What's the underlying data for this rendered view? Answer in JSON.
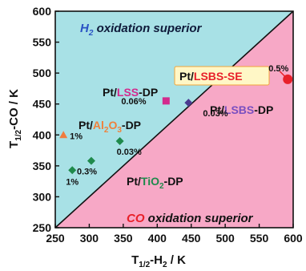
{
  "colors": {
    "upper_region": "#a8e1e6",
    "lower_region": "#f7a8c6",
    "marker_green": "#1f8a4c",
    "marker_orange": "#f07c3e",
    "marker_magenta": "#d32a8d",
    "marker_purple": "#4a3a8f",
    "marker_red": "#e8202a",
    "text_purple": "#7a4fc0",
    "text_orange": "#f0803a",
    "text_red": "#e8202a",
    "label_box_fill": "#fff7c6",
    "label_box_stroke": "#f2a53a"
  },
  "chart_data": {
    "type": "scatter",
    "xlim": [
      250,
      600
    ],
    "ylim": [
      250,
      600
    ],
    "xticks": [
      "250",
      "300",
      "350",
      "400",
      "450",
      "500",
      "550",
      "600"
    ],
    "yticks": [
      "250",
      "300",
      "350",
      "400",
      "450",
      "500",
      "550",
      "600"
    ],
    "xlabel": {
      "t": "T",
      "sub": "1/2",
      "rest": "-H",
      "sub2": "2",
      "unit": " / K"
    },
    "ylabel": {
      "t": "T",
      "sub": "1/2",
      "rest": "-CO / K"
    },
    "diagonal": [
      [
        250,
        250
      ],
      [
        600,
        600
      ]
    ],
    "regions": {
      "upper": {
        "a": "H",
        "sub": "2",
        "b": " oxidation superior"
      },
      "lower": {
        "a": "CO",
        "b": " oxidation superior"
      }
    },
    "series": [
      {
        "name": "Pt/TiO2-DP",
        "marker": "diamond",
        "color": "#1f8a4c",
        "points": [
          {
            "x": 275,
            "y": 343,
            "label": "1%"
          },
          {
            "x": 303,
            "y": 358,
            "label": "0.3%"
          },
          {
            "x": 345,
            "y": 390,
            "label": "0.03%"
          }
        ]
      },
      {
        "name": "Pt/Al2O3-DP",
        "marker": "triangle",
        "color": "#f07c3e",
        "points": [
          {
            "x": 262,
            "y": 400,
            "label": "1%"
          }
        ]
      },
      {
        "name": "Pt/LSS-DP",
        "marker": "square",
        "color": "#d32a8d",
        "points": [
          {
            "x": 413,
            "y": 455,
            "label": "0.06%"
          }
        ]
      },
      {
        "name": "Pt/LSBS-DP",
        "marker": "diamond",
        "color": "#4a3a8f",
        "points": [
          {
            "x": 446,
            "y": 452,
            "label": "0.03%"
          }
        ]
      },
      {
        "name": "Pt/LSBS-SE",
        "marker": "circle",
        "color": "#e8202a",
        "points": [
          {
            "x": 592,
            "y": 490,
            "label": "0.5%"
          }
        ]
      }
    ],
    "series_labels": {
      "lsbs_se": {
        "a": "Pt/",
        "b": "LSBS-SE"
      },
      "lss_dp": {
        "a": "Pt/",
        "b": "LSS",
        "c": "-DP"
      },
      "lsbs_dp": {
        "a": "Pt/",
        "b": "LSBS",
        "c": "-DP"
      },
      "al2o3_dp": {
        "a": "Pt/",
        "b": "Al",
        "s1": "2",
        "b2": "O",
        "s2": "3",
        "c": "-DP"
      },
      "tio2_dp": {
        "a": "Pt/",
        "b": "TiO",
        "s1": "2",
        "c": "-DP"
      }
    }
  }
}
